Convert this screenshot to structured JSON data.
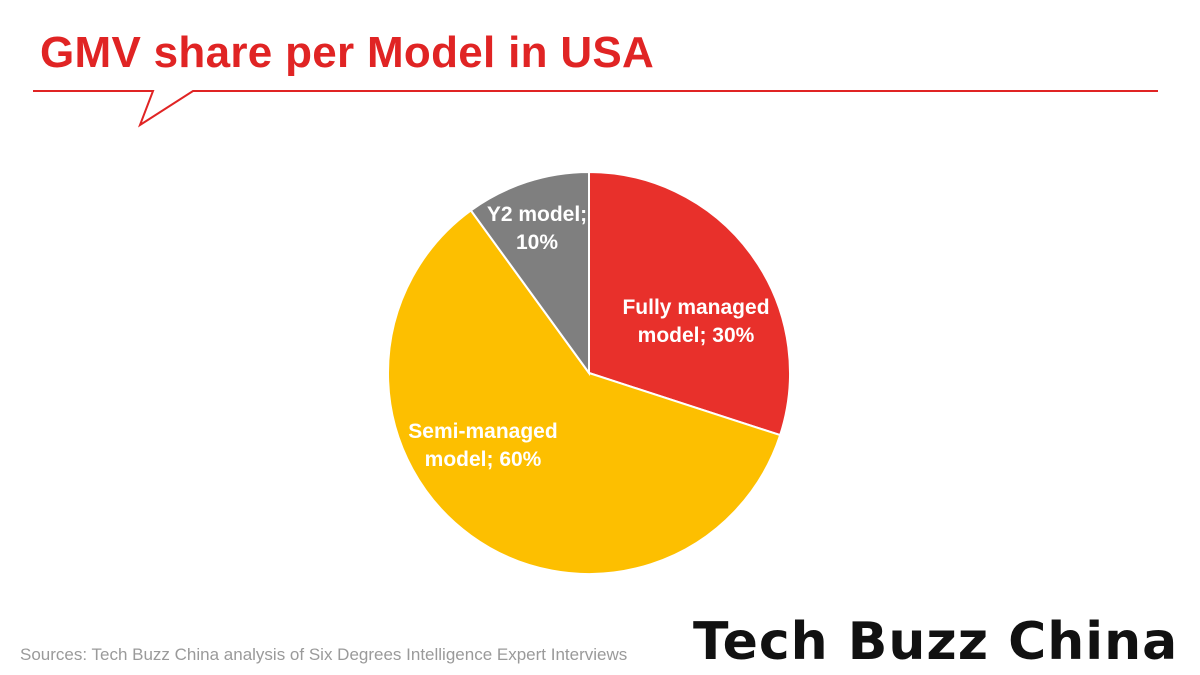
{
  "title": "GMV share per Model in USA",
  "colors": {
    "accent": "#e02424",
    "fully_managed": "#e8302b",
    "semi_managed": "#fdbf00",
    "y2": "#7f7f7f",
    "label": "#ffffff"
  },
  "chart_data": {
    "type": "pie",
    "title": "GMV share per Model in USA",
    "slices": [
      {
        "name": "Fully managed model",
        "value": 30,
        "label_lines": [
          "Fully managed",
          "model; 30%"
        ],
        "color": "#e8302b"
      },
      {
        "name": "Semi-managed model",
        "value": 60,
        "label_lines": [
          "Semi-managed",
          "model; 60%"
        ],
        "color": "#fdbf00"
      },
      {
        "name": "Y2 model",
        "value": 10,
        "label_lines": [
          "Y2 model;",
          "10%"
        ],
        "color": "#7f7f7f"
      }
    ]
  },
  "footer": {
    "source": "Sources: Tech Buzz China analysis of Six Degrees Intelligence Expert Interviews",
    "logo_text": "Tech Buzz China"
  }
}
